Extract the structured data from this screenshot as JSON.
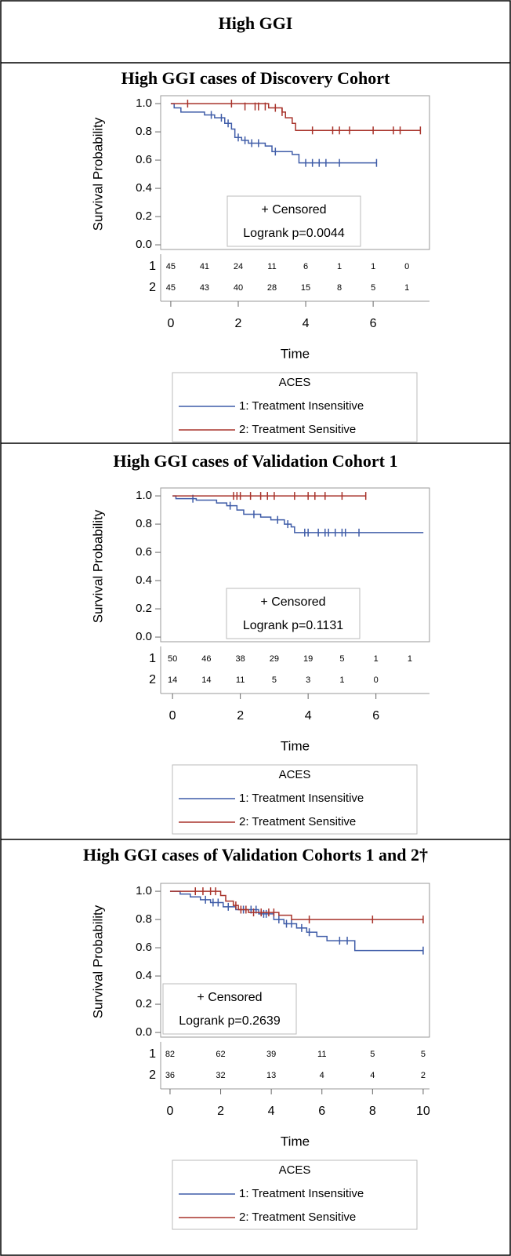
{
  "header": {
    "title": "High GGI"
  },
  "chart_data": [
    {
      "type": "km",
      "title": "High GGI cases of Discovery Cohort",
      "x_label": "Time",
      "y_label": "Survival Probability",
      "xlim": [
        -0.3,
        7.67
      ],
      "xticks": [
        0,
        2,
        4,
        6
      ],
      "ylim": [
        -0.033,
        1.056
      ],
      "yticks": [
        {
          "value": 1,
          "label": "1.0"
        },
        {
          "value": 0.8,
          "label": "0.8"
        },
        {
          "value": 0.6,
          "label": "0.6"
        },
        {
          "value": 0.4,
          "label": "0.4"
        },
        {
          "value": 0.2,
          "label": "0.2"
        },
        {
          "value": 0,
          "label": "0.0"
        }
      ],
      "annotations": [
        "+ Censored",
        "Logrank p=0.0044"
      ],
      "legend_title": "ACES",
      "series": [
        {
          "name": "1: Treatment Insensitive",
          "color": "#3f5ca8",
          "x": [
            0,
            0.1,
            0.3,
            1.0,
            1.3,
            1.6,
            1.8,
            1.9,
            2.1,
            2.3,
            2.8,
            3.0,
            3.6,
            3.8,
            6.1
          ],
          "values": [
            1.0,
            0.97,
            0.94,
            0.92,
            0.9,
            0.86,
            0.82,
            0.76,
            0.74,
            0.72,
            0.7,
            0.66,
            0.64,
            0.58,
            0.58
          ],
          "censored_x": [
            1.2,
            1.5,
            1.7,
            2.0,
            2.2,
            2.4,
            2.6,
            3.1,
            4.0,
            4.2,
            4.4,
            4.6,
            5.0,
            6.1
          ],
          "censored_y": [
            0.92,
            0.9,
            0.86,
            0.76,
            0.74,
            0.72,
            0.72,
            0.66,
            0.58,
            0.58,
            0.58,
            0.58,
            0.58,
            0.58
          ]
        },
        {
          "name": "2: Treatment Sensitive",
          "color": "#a8332b",
          "x": [
            0,
            2.9,
            3.3,
            3.4,
            3.6,
            3.7,
            7.4
          ],
          "values": [
            1.0,
            0.97,
            0.94,
            0.9,
            0.86,
            0.81,
            0.81
          ],
          "censored_x": [
            0.5,
            1.8,
            2.2,
            2.5,
            2.6,
            2.8,
            3.1,
            3.3,
            4.2,
            4.8,
            5.0,
            5.3,
            6.0,
            6.6,
            6.8,
            7.4
          ],
          "censored_y": [
            1.0,
            1.0,
            0.98,
            0.98,
            0.98,
            0.98,
            0.97,
            0.94,
            0.81,
            0.81,
            0.81,
            0.81,
            0.81,
            0.81,
            0.81,
            0.81
          ]
        }
      ],
      "risk_table": {
        "times": [
          0,
          1,
          2,
          3,
          4,
          5,
          6,
          7
        ],
        "rows": [
          {
            "label": "1",
            "values": [
              45,
              41,
              24,
              11,
              6,
              1,
              1,
              0
            ]
          },
          {
            "label": "2",
            "values": [
              45,
              43,
              40,
              28,
              15,
              8,
              5,
              1
            ]
          }
        ]
      }
    },
    {
      "type": "km",
      "title": "High GGI cases of Validation Cohort 1",
      "x_label": "Time",
      "y_label": "Survival Probability",
      "xlim": [
        -0.35,
        7.58
      ],
      "xticks": [
        0,
        2,
        4,
        6
      ],
      "ylim": [
        -0.033,
        1.056
      ],
      "yticks": [
        {
          "value": 1,
          "label": "1.0"
        },
        {
          "value": 0.8,
          "label": "0.8"
        },
        {
          "value": 0.6,
          "label": "0.6"
        },
        {
          "value": 0.4,
          "label": "0.4"
        },
        {
          "value": 0.2,
          "label": "0.2"
        },
        {
          "value": 0,
          "label": "0.0"
        }
      ],
      "annotations": [
        "+ Censored",
        "Logrank p=0.1131"
      ],
      "legend_title": "ACES",
      "series": [
        {
          "name": "1: Treatment Insensitive",
          "color": "#3f5ca8",
          "x": [
            0,
            0.1,
            0.7,
            1.3,
            1.6,
            1.9,
            2.1,
            2.6,
            2.9,
            3.3,
            3.5,
            3.6,
            7.4
          ],
          "values": [
            1.0,
            0.98,
            0.97,
            0.95,
            0.93,
            0.9,
            0.87,
            0.85,
            0.83,
            0.8,
            0.78,
            0.74,
            0.74
          ],
          "censored_x": [
            0.6,
            1.7,
            2.4,
            3.1,
            3.4,
            3.9,
            4.0,
            4.3,
            4.5,
            4.6,
            4.8,
            5.0,
            5.1,
            5.5
          ],
          "censored_y": [
            0.98,
            0.93,
            0.87,
            0.83,
            0.8,
            0.74,
            0.74,
            0.74,
            0.74,
            0.74,
            0.74,
            0.74,
            0.74,
            0.74
          ]
        },
        {
          "name": "2: Treatment Sensitive",
          "color": "#a8332b",
          "x": [
            0,
            5.7
          ],
          "values": [
            1.0,
            1.0
          ],
          "censored_x": [
            1.8,
            1.9,
            2.0,
            2.3,
            2.6,
            2.8,
            3.0,
            3.6,
            4.0,
            4.2,
            4.5,
            5.0,
            5.7
          ],
          "censored_y": [
            1.0,
            1.0,
            1.0,
            1.0,
            1.0,
            1.0,
            1.0,
            1.0,
            1.0,
            1.0,
            1.0,
            1.0,
            1.0
          ]
        }
      ],
      "risk_table": {
        "times": [
          0,
          1,
          2,
          3,
          4,
          5,
          6,
          7
        ],
        "rows": [
          {
            "label": "1",
            "values": [
              50,
              46,
              38,
              29,
              19,
              5,
              1,
              1
            ]
          },
          {
            "label": "2",
            "values": [
              14,
              14,
              11,
              5,
              3,
              1,
              0,
              null
            ]
          }
        ]
      }
    },
    {
      "type": "km",
      "title": "High GGI cases of Validation Cohorts 1 and 2†",
      "x_label": "Time",
      "y_label": "Survival Probability",
      "xlim": [
        -0.37,
        10.25
      ],
      "xticks": [
        0,
        2,
        4,
        6,
        8,
        10
      ],
      "ylim": [
        -0.033,
        1.056
      ],
      "yticks": [
        {
          "value": 1,
          "label": "1.0"
        },
        {
          "value": 0.8,
          "label": "0.8"
        },
        {
          "value": 0.6,
          "label": "0.6"
        },
        {
          "value": 0.4,
          "label": "0.4"
        },
        {
          "value": 0.2,
          "label": "0.2"
        },
        {
          "value": 0,
          "label": "0.0"
        }
      ],
      "annotations": [
        "+ Censored",
        "Logrank p=0.2639"
      ],
      "legend_title": "ACES",
      "series": [
        {
          "name": "1: Treatment Insensitive",
          "color": "#3f5ca8",
          "x": [
            0,
            0.4,
            0.8,
            1.2,
            1.6,
            2.1,
            2.6,
            3.5,
            4.1,
            4.5,
            5.0,
            5.4,
            5.8,
            6.2,
            7.3,
            10
          ],
          "values": [
            1.0,
            0.98,
            0.96,
            0.94,
            0.92,
            0.89,
            0.87,
            0.84,
            0.8,
            0.77,
            0.74,
            0.71,
            0.68,
            0.65,
            0.58,
            0.58
          ],
          "censored_x": [
            1.4,
            1.7,
            1.9,
            2.3,
            2.9,
            3.2,
            3.4,
            3.7,
            3.8,
            4.3,
            4.6,
            4.8,
            5.2,
            5.5,
            6.7,
            7.0,
            10
          ],
          "censored_y": [
            0.94,
            0.92,
            0.92,
            0.89,
            0.87,
            0.87,
            0.87,
            0.84,
            0.84,
            0.8,
            0.77,
            0.77,
            0.74,
            0.71,
            0.65,
            0.65,
            0.58
          ]
        },
        {
          "name": "2: Treatment Sensitive",
          "color": "#a8332b",
          "x": [
            0,
            2.0,
            2.2,
            2.5,
            2.7,
            3.1,
            4.3,
            4.8,
            10
          ],
          "values": [
            1.0,
            0.97,
            0.93,
            0.9,
            0.87,
            0.85,
            0.83,
            0.8,
            0.8
          ],
          "censored_x": [
            1.0,
            1.3,
            1.6,
            1.8,
            2.6,
            2.8,
            3.0,
            3.3,
            3.6,
            3.9,
            4.1,
            5.5,
            8.0,
            10
          ],
          "censored_y": [
            1.0,
            1.0,
            1.0,
            1.0,
            0.9,
            0.87,
            0.87,
            0.85,
            0.85,
            0.85,
            0.85,
            0.8,
            0.8,
            0.8
          ]
        }
      ],
      "risk_table": {
        "times": [
          0,
          2,
          4,
          6,
          8,
          10
        ],
        "rows": [
          {
            "label": "1",
            "values": [
              82,
              62,
              39,
              11,
              5,
              5
            ]
          },
          {
            "label": "2",
            "values": [
              36,
              32,
              13,
              4,
              4,
              2
            ]
          }
        ]
      }
    }
  ]
}
